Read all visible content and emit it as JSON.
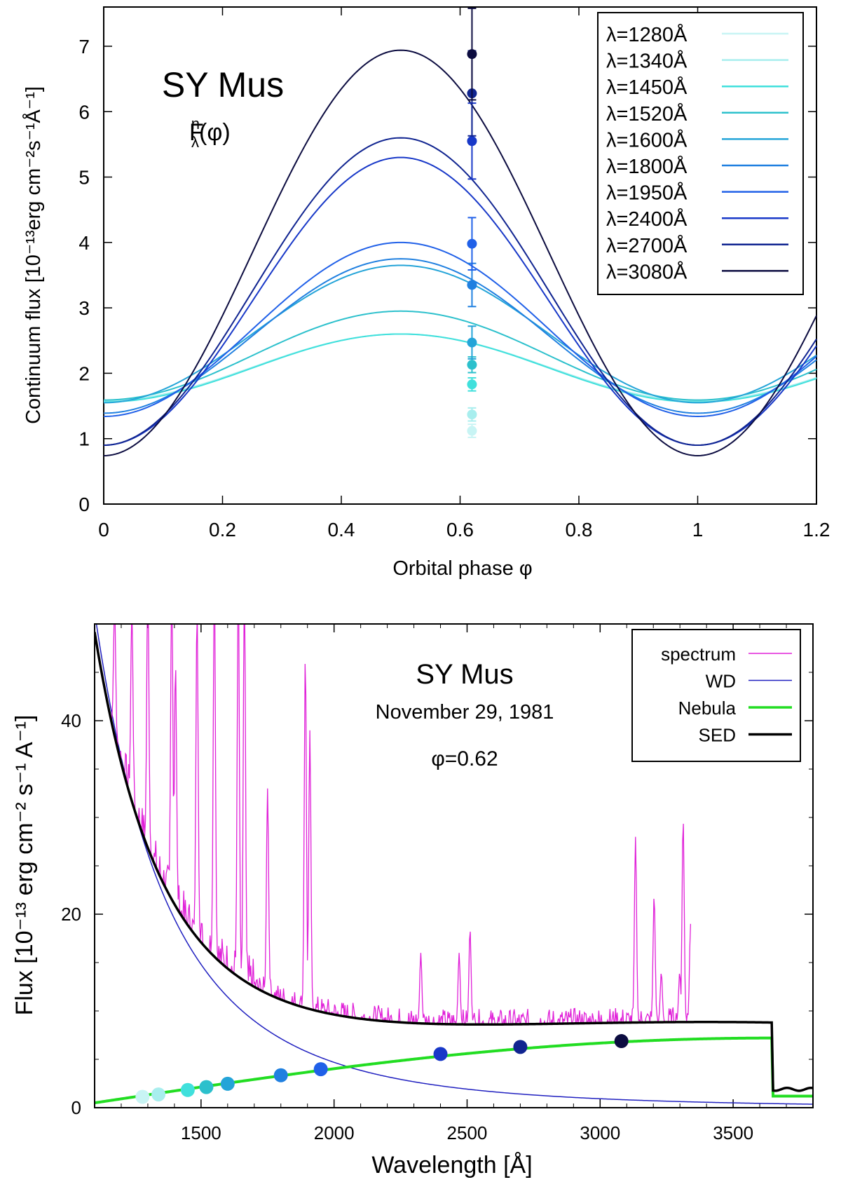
{
  "chart_data": [
    {
      "type": "line",
      "title": "SY Mus",
      "subtitle": "F",
      "subtitle_sup": "n",
      "subtitle_sub": "λ",
      "subtitle_tail": "(φ)",
      "xlabel": "Orbital phase φ",
      "ylabel": "Continuum flux [10⁻¹³erg cm⁻²s⁻¹Å⁻¹]",
      "xlim": [
        0,
        1.2
      ],
      "ylim": [
        0,
        7.6
      ],
      "xticks": [
        0,
        0.2,
        0.4,
        0.6,
        0.8,
        1,
        1.2
      ],
      "xtick_labels": [
        "0",
        "0.2",
        "0.4",
        "0.6",
        "0.8",
        "1",
        "1.2"
      ],
      "yticks": [
        0,
        1,
        2,
        3,
        4,
        5,
        6,
        7
      ],
      "ytick_labels": [
        "0",
        "1",
        "2",
        "3",
        "4",
        "5",
        "6",
        "7"
      ],
      "legend_position": "top-right",
      "series": [
        {
          "name": "λ=1280Å",
          "color": "#c8f4f4",
          "mean": 2.09,
          "amp": 0.51,
          "obs": 1.12,
          "err": 0.1
        },
        {
          "name": "λ=1340Å",
          "color": "#a8eeee",
          "mean": 2.09,
          "amp": 0.51,
          "obs": 1.37,
          "err": 0.1
        },
        {
          "name": "λ=1450Å",
          "color": "#40e0dc",
          "mean": 2.08,
          "amp": 0.52,
          "obs": 1.83,
          "err": 0.1
        },
        {
          "name": "λ=1520Å",
          "color": "#2cc0cc",
          "mean": 2.27,
          "amp": 0.68,
          "obs": 2.13,
          "err": 0.12
        },
        {
          "name": "λ=1600Å",
          "color": "#24a4d8",
          "mean": 2.6,
          "amp": 1.05,
          "obs": 2.47,
          "err": 0.25
        },
        {
          "name": "λ=1800Å",
          "color": "#2080e0",
          "mean": 2.57,
          "amp": 1.18,
          "obs": 3.35,
          "err": 0.33
        },
        {
          "name": "λ=1950Å",
          "color": "#2060e8",
          "mean": 2.67,
          "amp": 1.33,
          "obs": 3.98,
          "err": 0.4
        },
        {
          "name": "λ=2400Å",
          "color": "#1838c8",
          "mean": 3.1,
          "amp": 2.2,
          "obs": 5.55,
          "err": 0.58
        },
        {
          "name": "λ=2700Å",
          "color": "#102490",
          "mean": 3.25,
          "amp": 2.35,
          "obs": 6.28,
          "err": 0.65
        },
        {
          "name": "λ=3080Å",
          "color": "#0c0c40",
          "mean": 3.84,
          "amp": 3.1,
          "obs": 6.88,
          "err": 0.7
        }
      ],
      "obs_phase": 0.62
    },
    {
      "type": "line",
      "title": "SY Mus",
      "subtitle": "November 29, 1981",
      "annotation": "φ=0.62",
      "xlabel": "Wavelength [Å]",
      "ylabel": "Flux [10⁻¹³ erg cm⁻² s⁻¹ A⁻¹]",
      "xlim": [
        1100,
        3800
      ],
      "ylim": [
        0,
        50
      ],
      "xticks": [
        1500,
        2000,
        2500,
        3000,
        3500
      ],
      "xtick_labels": [
        "1500",
        "2000",
        "2500",
        "3000",
        "3500"
      ],
      "yticks": [
        0,
        20,
        40
      ],
      "ytick_labels": [
        "0",
        "20",
        "40"
      ],
      "legend_position": "top-right",
      "legend": [
        {
          "name": "spectrum",
          "color": "#e020d8"
        },
        {
          "name": "WD",
          "color": "#2020c0"
        },
        {
          "name": "Nebula",
          "color": "#22dd22"
        },
        {
          "name": "SED",
          "color": "#000000"
        }
      ],
      "spectrum_lines": [
        {
          "x": 1175,
          "peak": 52
        },
        {
          "x": 1240,
          "peak": 52
        },
        {
          "x": 1300,
          "peak": 55
        },
        {
          "x": 1390,
          "peak": 55
        },
        {
          "x": 1404,
          "peak": 46
        },
        {
          "x": 1485,
          "peak": 52
        },
        {
          "x": 1550,
          "peak": 55
        },
        {
          "x": 1640,
          "peak": 55
        },
        {
          "x": 1663,
          "peak": 55
        },
        {
          "x": 1750,
          "peak": 33
        },
        {
          "x": 1892,
          "peak": 47
        },
        {
          "x": 1909,
          "peak": 39
        },
        {
          "x": 2326,
          "peak": 16
        },
        {
          "x": 2470,
          "peak": 16
        },
        {
          "x": 2511,
          "peak": 18.5
        },
        {
          "x": 3133,
          "peak": 28
        },
        {
          "x": 3203,
          "peak": 22
        },
        {
          "x": 3230,
          "peak": 14
        },
        {
          "x": 3299,
          "peak": 14
        },
        {
          "x": 3312,
          "peak": 30
        },
        {
          "x": 3340,
          "peak": 19
        }
      ],
      "sed_points": [
        {
          "x": 1280,
          "y": 1.12,
          "color": "#c8f4f4"
        },
        {
          "x": 1340,
          "y": 1.37,
          "color": "#a8eeee"
        },
        {
          "x": 1450,
          "y": 1.83,
          "color": "#40e0dc"
        },
        {
          "x": 1520,
          "y": 2.13,
          "color": "#2cc0cc"
        },
        {
          "x": 1600,
          "y": 2.47,
          "color": "#24a4d8"
        },
        {
          "x": 1800,
          "y": 3.35,
          "color": "#2080e0"
        },
        {
          "x": 1950,
          "y": 3.98,
          "color": "#2060e8"
        },
        {
          "x": 2400,
          "y": 5.55,
          "color": "#1838c8"
        },
        {
          "x": 2700,
          "y": 6.28,
          "color": "#102490"
        },
        {
          "x": 3080,
          "y": 6.88,
          "color": "#0c0c40"
        }
      ]
    }
  ]
}
